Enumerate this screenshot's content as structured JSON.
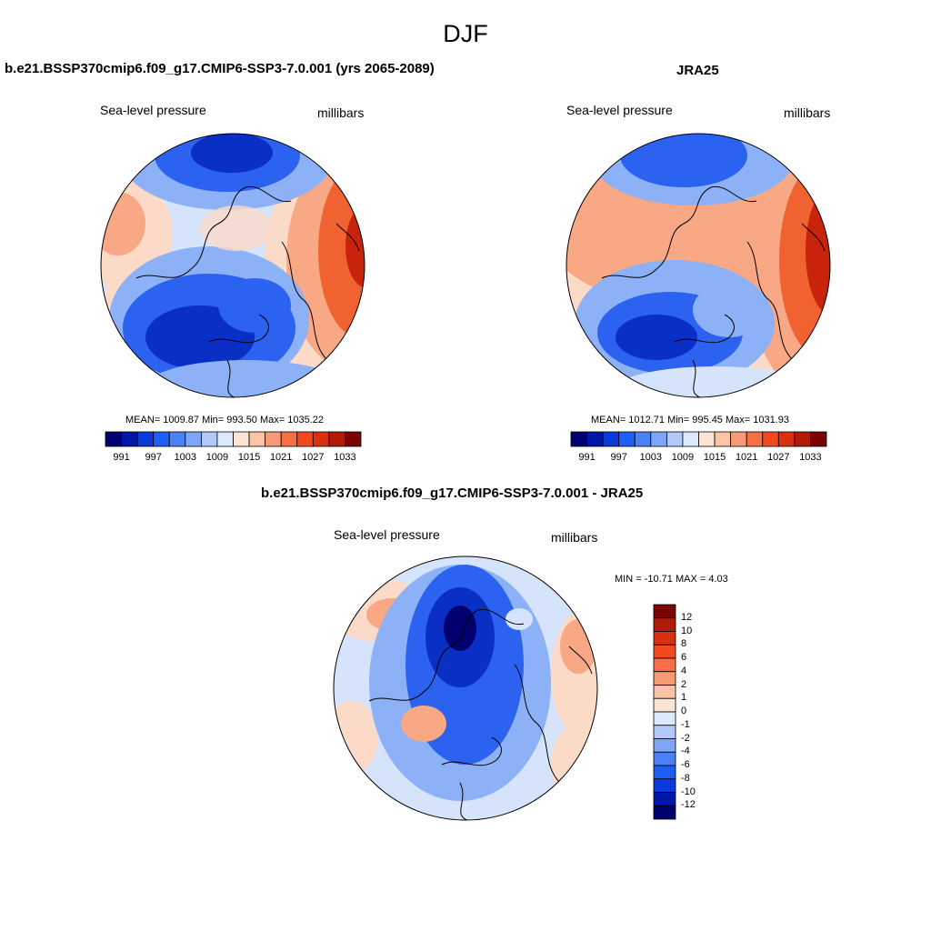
{
  "figure": {
    "title": "DJF"
  },
  "panels": [
    {
      "id": "model",
      "title": "b.e21.BSSP370cmip6.f09_g17.CMIP6-SSP3-7.0.001 (yrs 2065-2089)",
      "left_label": "Sea-level pressure",
      "right_label": "millibars",
      "stats": "MEAN= 1009.87  Min= 993.50  Max= 1035.22",
      "mean": 1009.87,
      "min": 993.5,
      "max": 1035.22
    },
    {
      "id": "obs",
      "title": "JRA25",
      "left_label": "Sea-level pressure",
      "right_label": "millibars",
      "stats": "MEAN= 1012.71  Min= 995.45  Max= 1031.93",
      "mean": 1012.71,
      "min": 995.45,
      "max": 1031.93
    },
    {
      "id": "diff",
      "title": "b.e21.BSSP370cmip6.f09_g17.CMIP6-SSP3-7.0.001 - JRA25",
      "left_label": "Sea-level pressure",
      "right_label": "millibars",
      "stats": "MIN = -10.71 MAX =   4.03",
      "min": -10.71,
      "max": 4.03
    }
  ],
  "colorbar_abs": {
    "ticks": [
      "991",
      "997",
      "1003",
      "1009",
      "1015",
      "1021",
      "1027",
      "1033"
    ],
    "colors": [
      "#00006f",
      "#0017a8",
      "#0a3ad9",
      "#1e5ef2",
      "#4c80f5",
      "#7ea5f7",
      "#b0c9f9",
      "#dce8fb",
      "#fde5d6",
      "#fbc4a4",
      "#f89b75",
      "#f66f46",
      "#f2491e",
      "#d83010",
      "#b01c08",
      "#7a0403"
    ]
  },
  "colorbar_diff": {
    "ticks": [
      "12",
      "10",
      "8",
      "6",
      "4",
      "2",
      "1",
      "0",
      "-1",
      "-2",
      "-4",
      "-6",
      "-8",
      "-10",
      "-12"
    ],
    "colors": [
      "#7a0403",
      "#b01c08",
      "#d83010",
      "#f2491e",
      "#f66f46",
      "#f89b75",
      "#fbc4a4",
      "#fde5d6",
      "#dce8fb",
      "#b0c9f9",
      "#7ea5f7",
      "#4c80f5",
      "#1e5ef2",
      "#0a3ad9",
      "#0017a8",
      "#00006f"
    ]
  },
  "map_colors": {
    "deep_blue": "#0a2fc4",
    "mid_blue": "#2b62ef",
    "light_blue": "#8cb1f6",
    "pale_blue": "#d6e4fb",
    "pale_red": "#fbdac8",
    "light_red": "#f8a885",
    "mid_red": "#f0622f",
    "deep_red": "#c8240b"
  }
}
